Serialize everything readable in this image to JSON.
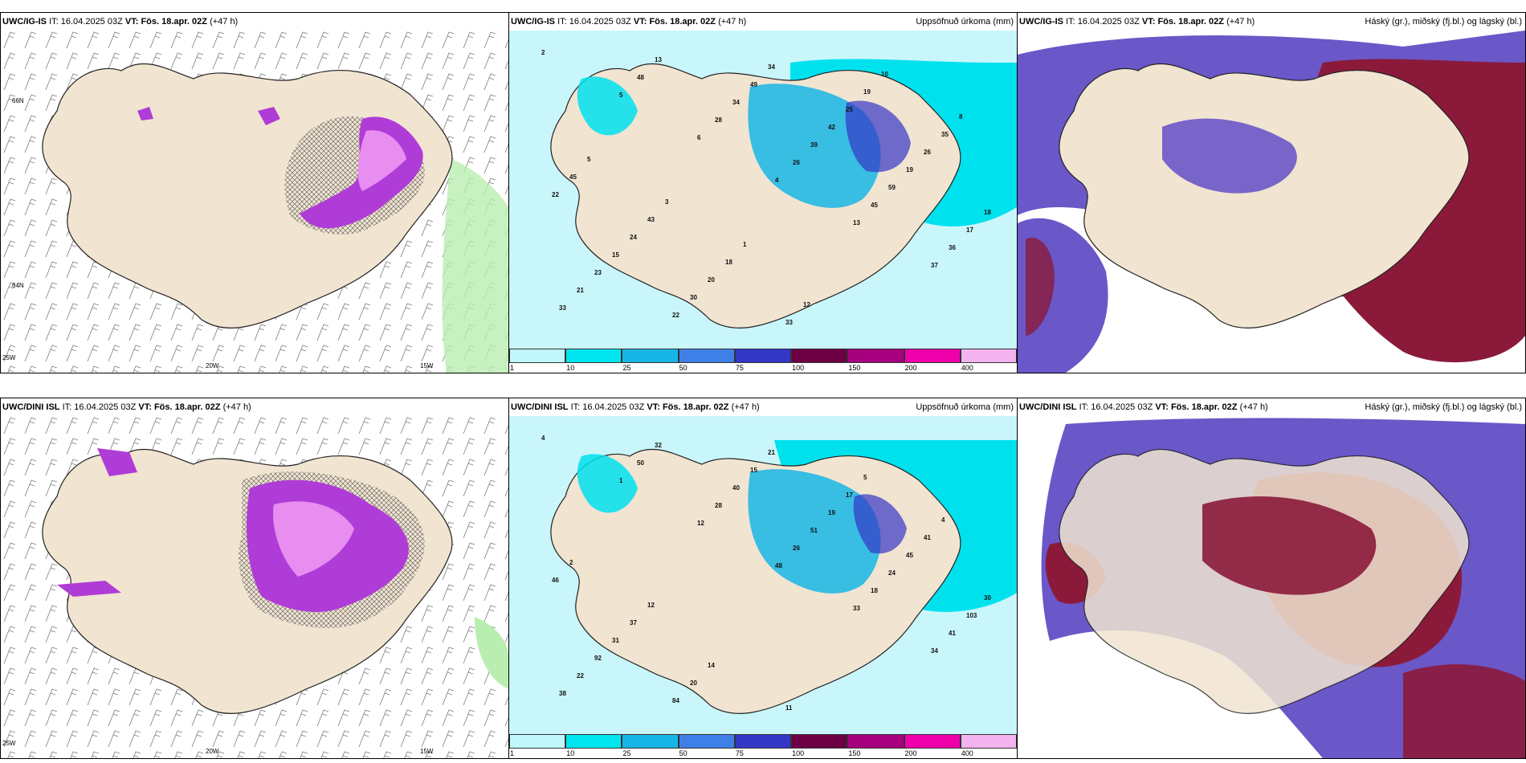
{
  "row_top": {
    "panel1": {
      "model": "UWC/IG-IS",
      "it_label": "IT:",
      "it": "16.04.2025 03Z",
      "vt_label": "VT:",
      "vt": "Fös. 18.apr. 02Z",
      "lead": "(+47 h)"
    },
    "panel2": {
      "model": "UWC/IG-IS",
      "it_label": "IT:",
      "it": "16.04.2025 03Z",
      "vt_label": "VT:",
      "vt": "Fös. 18.apr. 02Z",
      "lead": "(+47 h)",
      "right_title": "Uppsöfnuð úrkoma (mm)"
    },
    "panel3": {
      "model": "UWC/IG-IS",
      "it_label": "IT:",
      "it": "16.04.2025 03Z",
      "vt_label": "VT:",
      "vt": "Fös. 18.apr. 02Z",
      "lead": "(+47 h)",
      "right_title": "Háský (gr.), miðský (fj.bl.) og lágský (bl.)"
    }
  },
  "row_bottom": {
    "panel1": {
      "model": "UWC/DINI ISL",
      "it_label": "IT:",
      "it": "16.04.2025 03Z",
      "vt_label": "VT:",
      "vt": "Fös. 18.apr. 02Z",
      "lead": "(+47 h)"
    },
    "panel2": {
      "model": "UWC/DINI ISL",
      "it_label": "IT:",
      "it": "16.04.2025 03Z",
      "vt_label": "VT:",
      "vt": "Fös. 18.apr. 02Z",
      "lead": "(+47 h)",
      "right_title": "Uppsöfnuð úrkoma (mm)"
    },
    "panel3": {
      "model": "UWC/DINI ISL",
      "it_label": "IT:",
      "it": "16.04.2025 03Z",
      "vt_label": "VT:",
      "vt": "Fös. 18.apr. 02Z",
      "lead": "(+47 h)",
      "right_title": "Háský (gr.), miðský (fj.bl.) og lágský (bl.)"
    }
  },
  "axis_labels": {
    "lat66": "66N",
    "lat64": "64N",
    "lon25": "25W",
    "lon20": "20W",
    "lon15": "15W"
  },
  "colorbar": {
    "ticks": [
      "1",
      "10",
      "25",
      "50",
      "75",
      "100",
      "150",
      "200",
      "400"
    ],
    "colors": [
      "#bff7fa",
      "#00e5ee",
      "#18b6e6",
      "#3f7fe8",
      "#3436c6",
      "#6d0044",
      "#a7007f",
      "#ee00aa",
      "#f2b3ef"
    ]
  },
  "precip_labels_top": [
    "2",
    "5",
    "6",
    "4",
    "13",
    "37",
    "33",
    "48",
    "28",
    "26",
    "45",
    "36",
    "21",
    "13",
    "34",
    "39",
    "59",
    "17",
    "23",
    "22",
    "49",
    "42",
    "19",
    "18",
    "15",
    "30",
    "34",
    "25",
    "26",
    "22",
    "24",
    "20",
    "33",
    "19",
    "35",
    "45",
    "43",
    "18",
    "12",
    "10",
    "8",
    "5",
    "3",
    "1"
  ],
  "precip_labels_bottom": [
    "4",
    "1",
    "12",
    "48",
    "33",
    "34",
    "38",
    "50",
    "28",
    "26",
    "18",
    "41",
    "22",
    "32",
    "40",
    "51",
    "24",
    "103",
    "92",
    "84",
    "15",
    "19",
    "45",
    "30",
    "31",
    "20",
    "21",
    "17",
    "41",
    "46",
    "37",
    "14",
    "11",
    "5",
    "4",
    "2",
    "12"
  ],
  "colors": {
    "land": "#f1e4d1",
    "coast": "#222222",
    "snow": "#b03cd8",
    "snow_light": "#e78ef0",
    "cloud_high": "#ffffff",
    "cloud_mid": "#6a57c8",
    "cloud_low": "#8b1a3a",
    "sea_precip": "#c9f6fb",
    "precip_cyan": "#00e1ee"
  }
}
